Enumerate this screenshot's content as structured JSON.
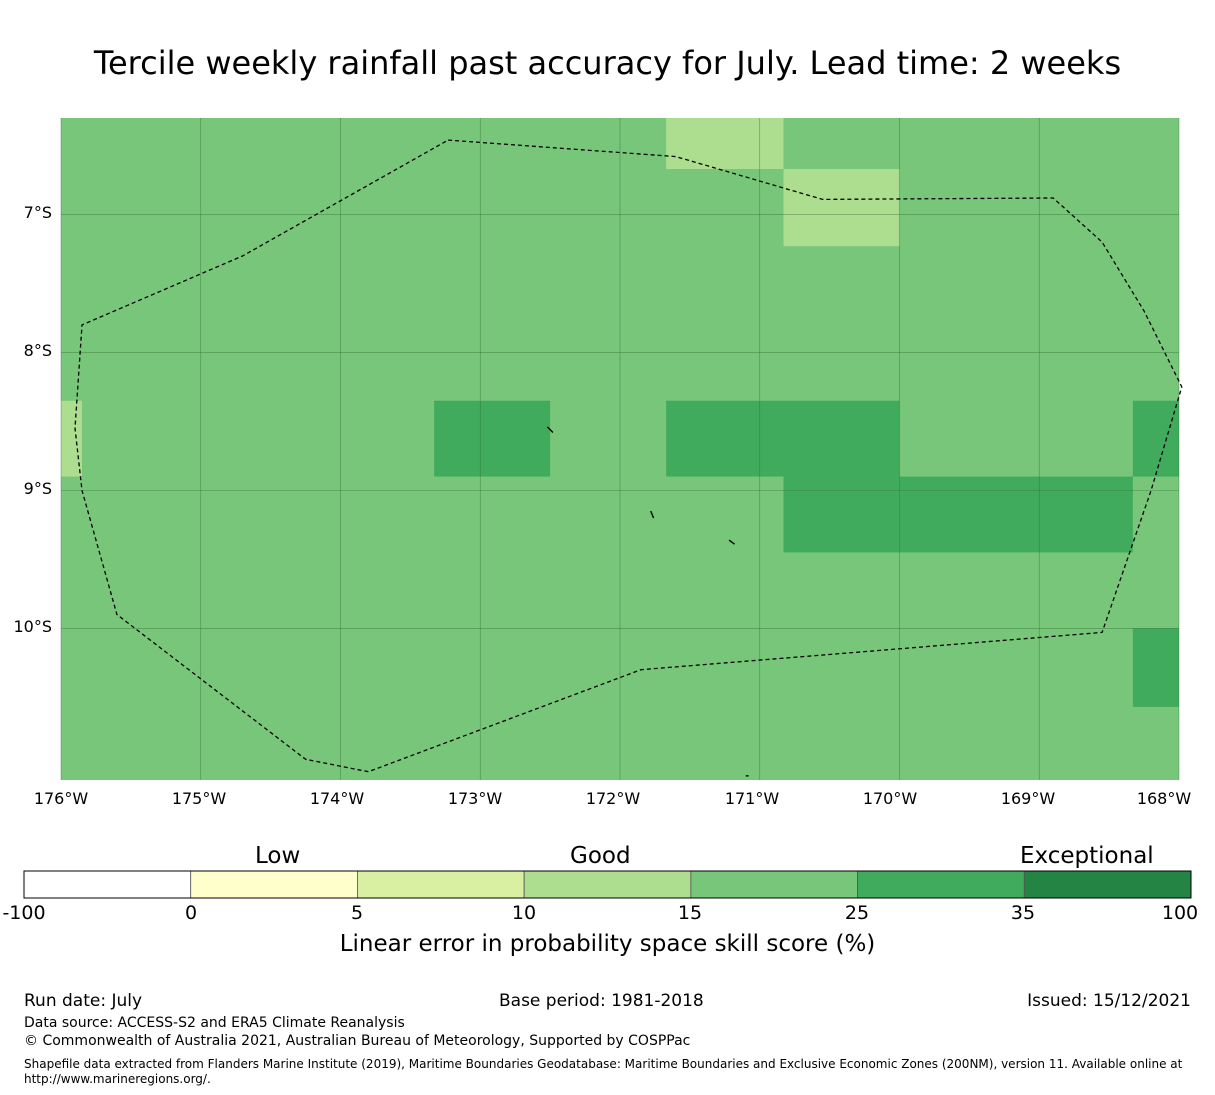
{
  "title": "Tercile weekly rainfall past accuracy for July. Lead time: 2 weeks",
  "map": {
    "lat_labels": [
      "7°S",
      "8°S",
      "9°S",
      "10°S"
    ],
    "lon_labels": [
      "176°W",
      "175°W",
      "174°W",
      "173°W",
      "172°W",
      "171°W",
      "170°W",
      "169°W",
      "168°W"
    ],
    "lon_range": [
      -176,
      -168
    ],
    "lat_range": [
      -11.1,
      -6.3
    ],
    "base_color": "#78c679",
    "cell_colors": {
      "10-15": "#addd8e",
      "15-25": "#78c679",
      "25-35": "#41ab5d"
    },
    "grid_cells": [
      {
        "lon": [
          -171.67,
          -170.83
        ],
        "lat": [
          -6.67,
          -6.3
        ],
        "class": "10-15"
      },
      {
        "lon": [
          -170.83,
          -170.0
        ],
        "lat": [
          -7.23,
          -6.67
        ],
        "class": "10-15"
      },
      {
        "lon": [
          -176.0,
          -175.85
        ],
        "lat": [
          -8.9,
          -8.35
        ],
        "class": "10-15"
      },
      {
        "lon": [
          -173.33,
          -172.5
        ],
        "lat": [
          -8.9,
          -8.35
        ],
        "class": "25-35"
      },
      {
        "lon": [
          -171.67,
          -170.0
        ],
        "lat": [
          -8.9,
          -8.35
        ],
        "class": "25-35"
      },
      {
        "lon": [
          -168.33,
          -168.0
        ],
        "lat": [
          -8.9,
          -8.35
        ],
        "class": "25-35"
      },
      {
        "lon": [
          -170.83,
          -168.33
        ],
        "lat": [
          -9.45,
          -8.9
        ],
        "class": "25-35"
      },
      {
        "lon": [
          -168.33,
          -168.0
        ],
        "lat": [
          -10.57,
          -10.0
        ],
        "class": "25-35"
      }
    ],
    "eez_boundary": [
      [
        -173.23,
        -6.46
      ],
      [
        -171.6,
        -6.58
      ],
      [
        -170.55,
        -6.89
      ],
      [
        -168.9,
        -6.88
      ],
      [
        -168.55,
        -7.2
      ],
      [
        -168.25,
        -7.7
      ],
      [
        -167.98,
        -8.25
      ],
      [
        -168.2,
        -9.0
      ],
      [
        -168.55,
        -10.03
      ],
      [
        -171.85,
        -10.3
      ],
      [
        -173.8,
        -11.04
      ],
      [
        -174.25,
        -10.95
      ],
      [
        -175.6,
        -9.9
      ],
      [
        -175.85,
        -9.0
      ],
      [
        -175.9,
        -8.55
      ],
      [
        -175.85,
        -7.8
      ],
      [
        -174.7,
        -7.3
      ],
      [
        -173.23,
        -6.46
      ]
    ],
    "islands": [
      [
        [
          -172.52,
          -8.54
        ],
        [
          -172.48,
          -8.58
        ]
      ],
      [
        [
          -171.78,
          -9.15
        ],
        [
          -171.76,
          -9.2
        ]
      ],
      [
        [
          -171.22,
          -9.36
        ],
        [
          -171.18,
          -9.39
        ]
      ],
      [
        [
          -171.1,
          -11.07
        ],
        [
          -171.08,
          -11.07
        ]
      ]
    ]
  },
  "colorbar": {
    "categories": [
      "Low",
      "Good",
      "Exceptional"
    ],
    "bins": [
      {
        "from": "-100",
        "to": "0",
        "color": "#ffffff"
      },
      {
        "from": "0",
        "to": "5",
        "color": "#ffffcc"
      },
      {
        "from": "5",
        "to": "10",
        "color": "#d9f0a3"
      },
      {
        "from": "10",
        "to": "15",
        "color": "#addd8e"
      },
      {
        "from": "15",
        "to": "25",
        "color": "#78c679"
      },
      {
        "from": "25",
        "to": "35",
        "color": "#41ab5d"
      },
      {
        "from": "35",
        "to": "100",
        "color": "#238443"
      }
    ],
    "tick_labels": [
      "-100",
      "0",
      "5",
      "10",
      "15",
      "25",
      "35",
      "100"
    ],
    "label": "Linear error in probability space skill score (%)"
  },
  "footer": {
    "run_date": "Run date: July",
    "base_period": "Base period: 1981-2018",
    "issued": "Issued: 15/12/2021",
    "data_source": "Data source: ACCESS-S2 and ERA5 Climate Reanalysis",
    "copyright": "© Commonwealth of Australia 2021, Australian Bureau of Meteorology, Supported by COSPPac",
    "shapefile_note": "Shapefile data extracted from Flanders Marine Institute (2019), Maritime Boundaries Geodatabase: Maritime Boundaries and Exclusive Economic Zones (200NM), version 11. Available online at http://www.marineregions.org/."
  }
}
